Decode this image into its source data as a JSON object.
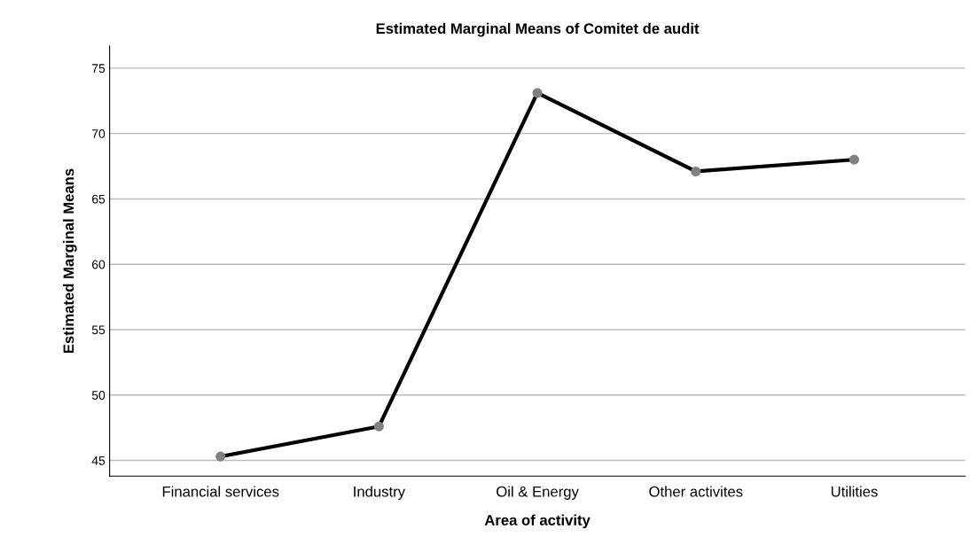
{
  "chart_data": {
    "type": "line",
    "title": "Estimated Marginal Means of Comitet de audit",
    "xlabel": "Area of activity",
    "ylabel": "Estimated Marginal Means",
    "categories": [
      "Financial services",
      "Industry",
      "Oil & Energy",
      "Other activites",
      "Utilities"
    ],
    "series": [
      {
        "color": "#000000",
        "values": [
          45.3,
          47.6,
          73.1,
          67.1,
          68.0
        ]
      }
    ],
    "marker": "circle",
    "line_style": "solid",
    "ylim": [
      43.8,
      76.7
    ],
    "yticks": [
      45,
      50,
      55,
      60,
      65,
      70,
      75
    ],
    "grid": "y"
  }
}
